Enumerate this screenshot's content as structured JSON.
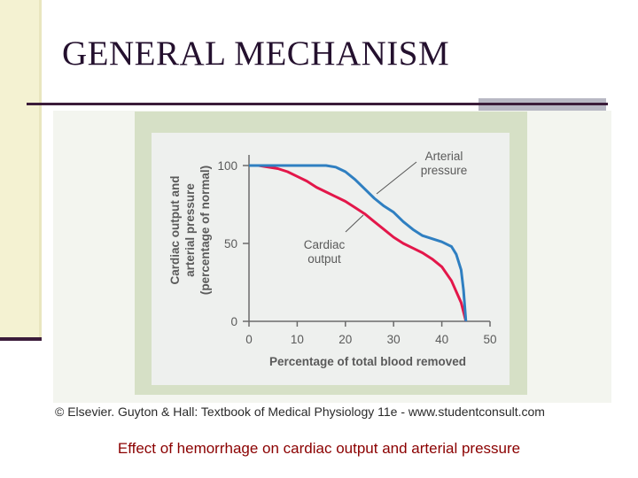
{
  "slide": {
    "title": "GENERAL MECHANISM",
    "caption": "Effect of hemorrhage on cardiac output and arterial pressure"
  },
  "figure": {
    "copyright": "© Elsevier. Guyton & Hall: Textbook of Medical Physiology 11e - www.studentconsult.com"
  },
  "chart_data": {
    "type": "line",
    "title": "",
    "xlabel": "Percentage of total blood removed",
    "ylabel_lines": [
      "Cardiac output and",
      "arterial pressure",
      "(percentage of normal)"
    ],
    "xlim": [
      0,
      50
    ],
    "ylim": [
      0,
      100
    ],
    "x_ticks": [
      0,
      10,
      20,
      30,
      40,
      50
    ],
    "y_ticks": [
      0,
      50,
      100
    ],
    "grid": false,
    "series": [
      {
        "name": "Arterial pressure",
        "label_lines": [
          "Arterial",
          "pressure"
        ],
        "color": "#2f7fc1",
        "x": [
          0,
          2,
          4,
          6,
          8,
          10,
          12,
          14,
          16,
          18,
          20,
          22,
          24,
          26,
          28,
          30,
          32,
          34,
          36,
          38,
          40,
          42,
          43,
          44,
          44.5,
          45
        ],
        "y": [
          100,
          100,
          100,
          100,
          100,
          100,
          100,
          100,
          100,
          99,
          96,
          91,
          85,
          79,
          74,
          70,
          64,
          59,
          55,
          53,
          51,
          48,
          43,
          33,
          20,
          0
        ]
      },
      {
        "name": "Cardiac output",
        "label_lines": [
          "Cardiac",
          "output"
        ],
        "color": "#e3174a",
        "x": [
          0,
          2,
          4,
          6,
          8,
          10,
          12,
          14,
          16,
          18,
          20,
          22,
          24,
          26,
          28,
          30,
          32,
          34,
          36,
          38,
          40,
          42,
          44,
          45
        ],
        "y": [
          100,
          100,
          99,
          98,
          96,
          93,
          90,
          86,
          83,
          80,
          77,
          73,
          69,
          64,
          59,
          54,
          50,
          47,
          44,
          40,
          35,
          26,
          12,
          0
        ]
      }
    ]
  }
}
